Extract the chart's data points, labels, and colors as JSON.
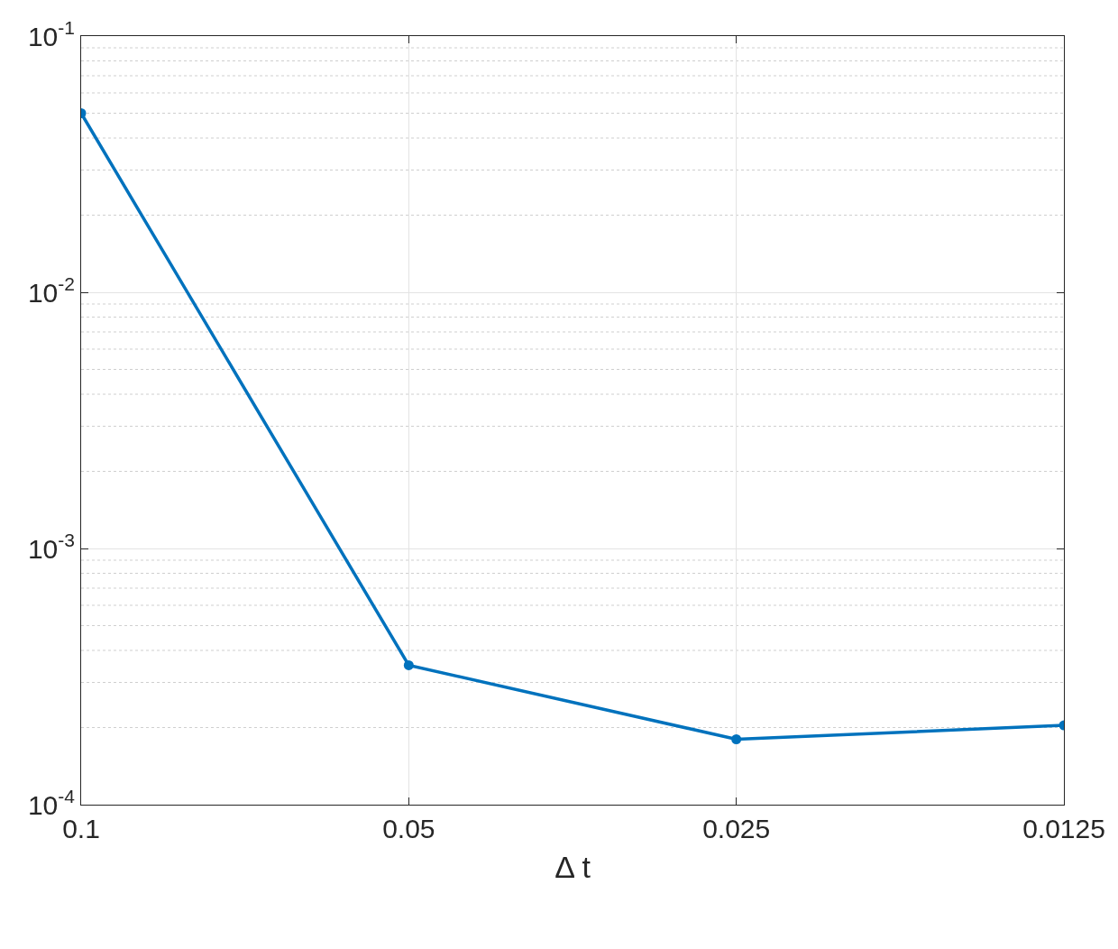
{
  "chart_data": {
    "type": "line",
    "xlabel": "Δ t",
    "log": "xy",
    "x": [
      0.1,
      0.05,
      0.025,
      0.0125
    ],
    "series": [
      {
        "color": "#0072bd",
        "values": [
          0.05,
          0.00035,
          0.00018,
          0.000204
        ]
      }
    ],
    "xlim": [
      0.1,
      0.0125
    ],
    "xticks": [
      0.1,
      0.05,
      0.025,
      0.0125
    ],
    "ylim": [
      0.0001,
      0.1
    ],
    "yticks": [
      {
        "value": 0.0001,
        "label": "10$^{-4}$"
      },
      {
        "value": 0.001,
        "label": "10$^{-3}$"
      },
      {
        "value": 0.01,
        "label": "10$^{-2}$"
      },
      {
        "value": 0.1,
        "label": "10$^{-1}$"
      }
    ],
    "grid": true,
    "marker": "circle",
    "line_style": "solid"
  }
}
